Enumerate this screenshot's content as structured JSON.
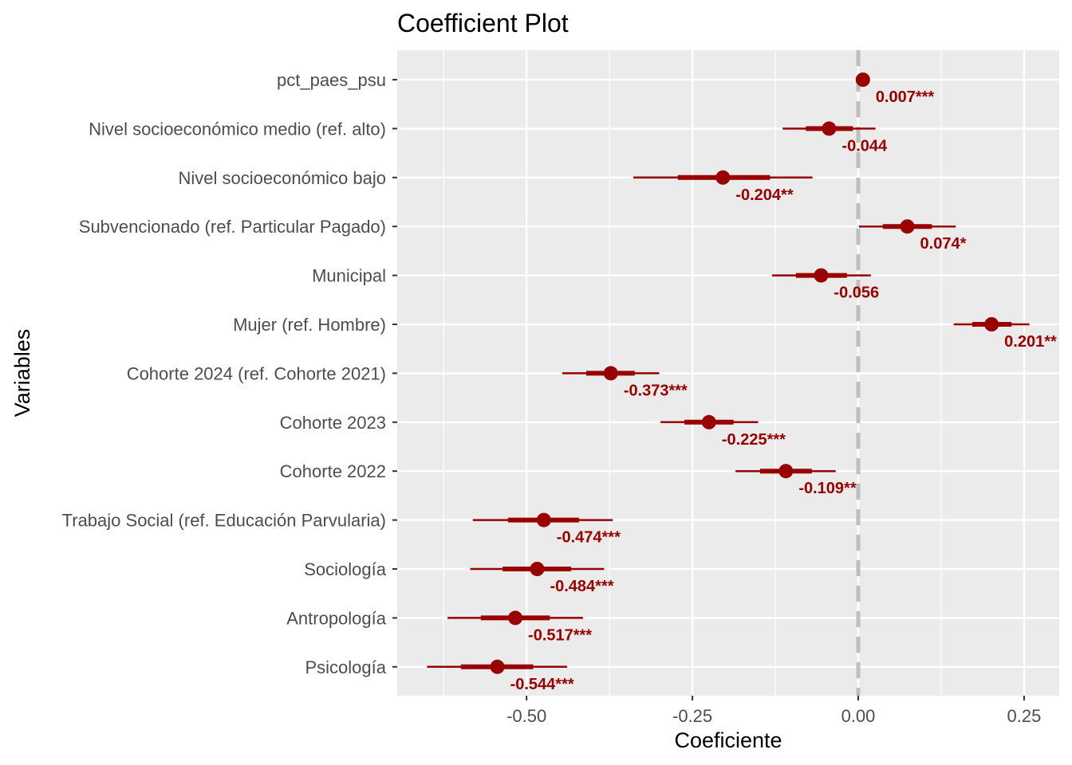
{
  "chart_data": {
    "type": "scatter",
    "title": "Coefficient Plot",
    "xlabel": "Coeficiente",
    "ylabel": "Variables",
    "xlim": [
      -0.695,
      0.303
    ],
    "xticks": [
      -0.5,
      -0.25,
      0.0,
      0.25
    ],
    "xtick_labels": [
      "-0.50",
      "-0.25",
      "0.00",
      "0.25"
    ],
    "reference_line": 0,
    "grid": true,
    "colors": {
      "point": "#990000",
      "panel": "#EBEBEB",
      "grid": "#FFFFFF",
      "refline": "#BEBEBE"
    },
    "rows": [
      {
        "variable": "pct_paes_psu",
        "estimate": 0.007,
        "label": "0.007***",
        "ci90": [
          0.004,
          0.01
        ],
        "ci95": [
          0.003,
          0.011
        ]
      },
      {
        "variable": "Nivel socioeconómico medio (ref. alto)",
        "estimate": -0.044,
        "label": "-0.044",
        "ci90": [
          -0.079,
          -0.008
        ],
        "ci95": [
          -0.114,
          0.026
        ]
      },
      {
        "variable": "Nivel socioeconómico bajo",
        "estimate": -0.204,
        "label": "-0.204**",
        "ci90": [
          -0.272,
          -0.133
        ],
        "ci95": [
          -0.339,
          -0.069
        ]
      },
      {
        "variable": "Subvencionado (ref. Particular Pagado)",
        "estimate": 0.074,
        "label": "0.074*",
        "ci90": [
          0.037,
          0.111
        ],
        "ci95": [
          0.001,
          0.147
        ]
      },
      {
        "variable": "Municipal",
        "estimate": -0.056,
        "label": "-0.056",
        "ci90": [
          -0.094,
          -0.017
        ],
        "ci95": [
          -0.13,
          0.019
        ]
      },
      {
        "variable": "Mujer (ref. Hombre)",
        "estimate": 0.201,
        "label": "0.201**",
        "ci90": [
          0.172,
          0.231
        ],
        "ci95": [
          0.144,
          0.258
        ]
      },
      {
        "variable": "Cohorte 2024 (ref. Cohorte 2021)",
        "estimate": -0.373,
        "label": "-0.373***",
        "ci90": [
          -0.41,
          -0.337
        ],
        "ci95": [
          -0.446,
          -0.3
        ]
      },
      {
        "variable": "Cohorte 2023",
        "estimate": -0.225,
        "label": "-0.225***",
        "ci90": [
          -0.262,
          -0.188
        ],
        "ci95": [
          -0.298,
          -0.151
        ]
      },
      {
        "variable": "Cohorte 2022",
        "estimate": -0.109,
        "label": "-0.109**",
        "ci90": [
          -0.148,
          -0.07
        ],
        "ci95": [
          -0.185,
          -0.034
        ]
      },
      {
        "variable": "Trabajo Social (ref. Educación Parvularia)",
        "estimate": -0.474,
        "label": "-0.474***",
        "ci90": [
          -0.528,
          -0.421
        ],
        "ci95": [
          -0.581,
          -0.37
        ]
      },
      {
        "variable": "Sociología",
        "estimate": -0.484,
        "label": "-0.484***",
        "ci90": [
          -0.536,
          -0.433
        ],
        "ci95": [
          -0.585,
          -0.383
        ]
      },
      {
        "variable": "Antropología",
        "estimate": -0.517,
        "label": "-0.517***",
        "ci90": [
          -0.569,
          -0.465
        ],
        "ci95": [
          -0.619,
          -0.415
        ]
      },
      {
        "variable": "Psicología",
        "estimate": -0.544,
        "label": "-0.544***",
        "ci90": [
          -0.599,
          -0.49
        ],
        "ci95": [
          -0.65,
          -0.439
        ]
      }
    ]
  }
}
